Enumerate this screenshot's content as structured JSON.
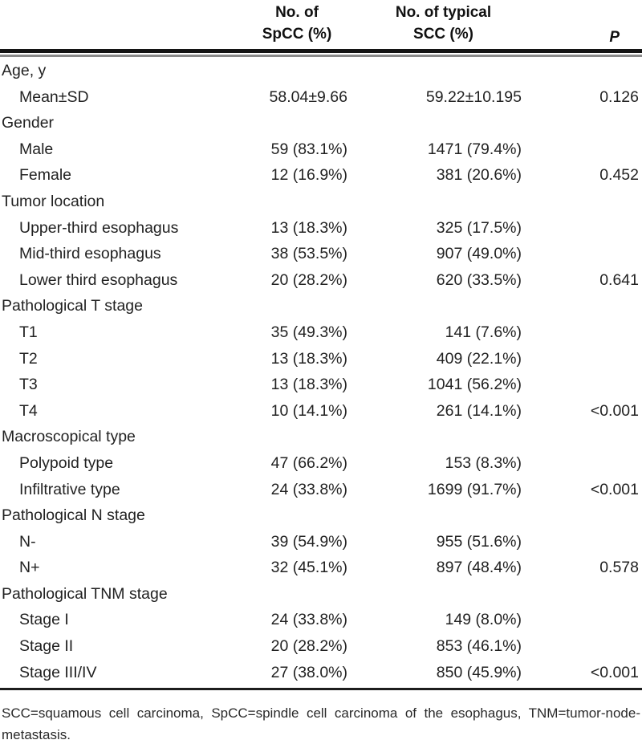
{
  "table": {
    "header": {
      "spcc_line1": "No. of",
      "spcc_line2": "SpCC (%)",
      "scc_line1": "No. of typical",
      "scc_line2": "SCC (%)",
      "p_label": "P"
    },
    "rows": [
      {
        "label": "Age, y"
      },
      {
        "label": "Mean±SD",
        "spcc": "58.04±9.66",
        "scc": "59.22±10.195",
        "p": "0.126"
      },
      {
        "label": "Gender"
      },
      {
        "label": "Male",
        "spcc": "59 (83.1%)",
        "scc": "1471 (79.4%)"
      },
      {
        "label": "Female",
        "spcc": "12 (16.9%)",
        "scc": "381 (20.6%)",
        "p": "0.452"
      },
      {
        "label": "Tumor location"
      },
      {
        "label": "Upper-third esophagus",
        "spcc": "13 (18.3%)",
        "scc": "325 (17.5%)"
      },
      {
        "label": "Mid-third esophagus",
        "spcc": "38 (53.5%)",
        "scc": "907 (49.0%)"
      },
      {
        "label": "Lower third esophagus",
        "spcc": "20 (28.2%)",
        "scc": "620 (33.5%)",
        "p": "0.641"
      },
      {
        "label": "Pathological T stage"
      },
      {
        "label": "T1",
        "spcc": "35 (49.3%)",
        "scc": "141 (7.6%)"
      },
      {
        "label": "T2",
        "spcc": "13 (18.3%)",
        "scc": "409 (22.1%)"
      },
      {
        "label": "T3",
        "spcc": "13 (18.3%)",
        "scc": "1041 (56.2%)"
      },
      {
        "label": "T4",
        "spcc": "10 (14.1%)",
        "scc": "261 (14.1%)",
        "p": "<0.001"
      },
      {
        "label": "Macroscopical type"
      },
      {
        "label": "Polypoid type",
        "spcc": "47 (66.2%)",
        "scc": "153 (8.3%)"
      },
      {
        "label": "Infiltrative type",
        "spcc": "24 (33.8%)",
        "scc": "1699 (91.7%)",
        "p": "<0.001"
      },
      {
        "label": "Pathological N stage"
      },
      {
        "label": "N-",
        "spcc": "39 (54.9%)",
        "scc": "955 (51.6%)"
      },
      {
        "label": "N+",
        "spcc": "32 (45.1%)",
        "scc": "897 (48.4%)",
        "p": "0.578"
      },
      {
        "label": "Pathological TNM stage"
      },
      {
        "label": "Stage I",
        "spcc": "24 (33.8%)",
        "scc": "149 (8.0%)"
      },
      {
        "label": "Stage II",
        "spcc": "20 (28.2%)",
        "scc": "853 (46.1%)"
      },
      {
        "label": "Stage III/IV",
        "spcc": "27 (38.0%)",
        "scc": "850 (45.9%)",
        "p": "<0.001"
      }
    ],
    "footnote": "SCC=squamous cell carcinoma, SpCC=spindle cell carcinoma of the esophagus, TNM=tumor-node-metastasis."
  }
}
